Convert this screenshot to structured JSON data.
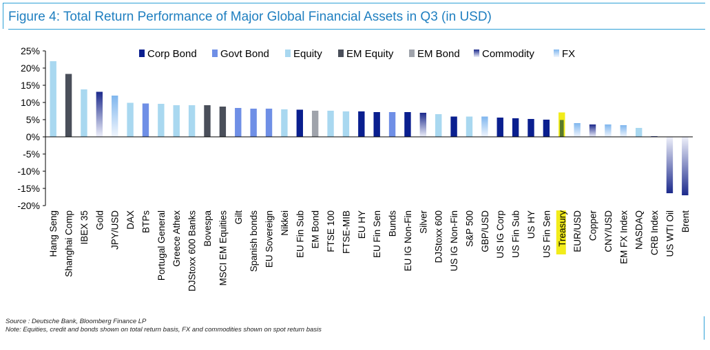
{
  "title": "Figure 4: Total Return Performance of Major Global Financial Assets in Q3 (in USD)",
  "source": "Source : Deutsche Bank, Bloomberg Finance LP",
  "note": "Note: Equities, credit and bonds shown on total return basis, FX and commodities shown on spot return basis",
  "colors": {
    "Corp Bond": "#0a1f8f",
    "Govt Bond": "#6f8fe6",
    "Equity": "#a9d8f0",
    "EM Equity": "#4a4f5a",
    "EM Bond": "#9fa3ab",
    "Commodity": "#1c2a8c",
    "FX": "#7fb6ee",
    "highlight": "#f2ec1a"
  },
  "chart_data": {
    "type": "bar",
    "title": "Figure 4: Total Return Performance of Major Global Financial Assets in Q3 (in USD)",
    "xlabel": "",
    "ylabel": "",
    "ylim": [
      -20,
      25
    ],
    "yticks": [
      -20,
      -15,
      -10,
      -5,
      0,
      5,
      10,
      15,
      20,
      25
    ],
    "ytick_labels": [
      "-20%",
      "-15%",
      "-10%",
      "-5%",
      "0%",
      "5%",
      "10%",
      "15%",
      "20%",
      "25%"
    ],
    "legend_position": "top",
    "legend": [
      "Corp Bond",
      "Govt Bond",
      "Equity",
      "EM Equity",
      "EM Bond",
      "Commodity",
      "FX"
    ],
    "categories": [
      "Hang Seng",
      "Shanghai Comp",
      "IBEX 35",
      "Gold",
      "JPY/USD",
      "DAX",
      "BTPs",
      "Portugal General",
      "Greece Athex",
      "DJStoxx 600 Banks",
      "Bovespa",
      "MSCI EM Equities",
      "Gilt",
      "Spanish bonds",
      "EU Sovereign",
      "Nikkei",
      "EU Fin Sub",
      "EM Bond",
      "FTSE 100",
      "FTSE-MIB",
      "EU HY",
      "EU Fin Sen",
      "Bunds",
      "EU IG Non-Fin",
      "Silver",
      "DJStoxx 600",
      "US IG Non-Fin",
      "S&P 500",
      "GBP/USD",
      "US IG Corp",
      "US Fin Sub",
      "US HY",
      "US Fin Sen",
      "Treasury",
      "EUR/USD",
      "Copper",
      "CNY/USD",
      "EM FX Index",
      "NASDAQ",
      "CRB Index",
      "US WTI Oil",
      "Brent"
    ],
    "values": [
      22.0,
      18.3,
      13.8,
      13.1,
      12.0,
      9.9,
      9.7,
      9.6,
      9.2,
      9.2,
      9.2,
      8.8,
      8.4,
      8.2,
      8.2,
      8.0,
      7.9,
      7.6,
      7.6,
      7.4,
      7.4,
      7.2,
      7.2,
      7.2,
      7.0,
      6.6,
      5.9,
      5.9,
      5.9,
      5.6,
      5.4,
      5.2,
      5.0,
      4.9,
      4.0,
      3.6,
      3.6,
      3.4,
      2.6,
      0.2,
      -16.4,
      -17.0
    ],
    "classes": [
      "Equity",
      "EM Equity",
      "Equity",
      "Commodity",
      "FX",
      "Equity",
      "Govt Bond",
      "Equity",
      "Equity",
      "Equity",
      "EM Equity",
      "EM Equity",
      "Govt Bond",
      "Govt Bond",
      "Govt Bond",
      "Equity",
      "Corp Bond",
      "EM Bond",
      "Equity",
      "Equity",
      "Corp Bond",
      "Corp Bond",
      "Govt Bond",
      "Corp Bond",
      "Commodity",
      "Equity",
      "Corp Bond",
      "Equity",
      "FX",
      "Corp Bond",
      "Corp Bond",
      "Corp Bond",
      "Corp Bond",
      "Govt Bond",
      "FX",
      "Commodity",
      "FX",
      "FX",
      "Equity",
      "Commodity",
      "Commodity",
      "Commodity"
    ],
    "highlighted": [
      "Treasury"
    ]
  }
}
